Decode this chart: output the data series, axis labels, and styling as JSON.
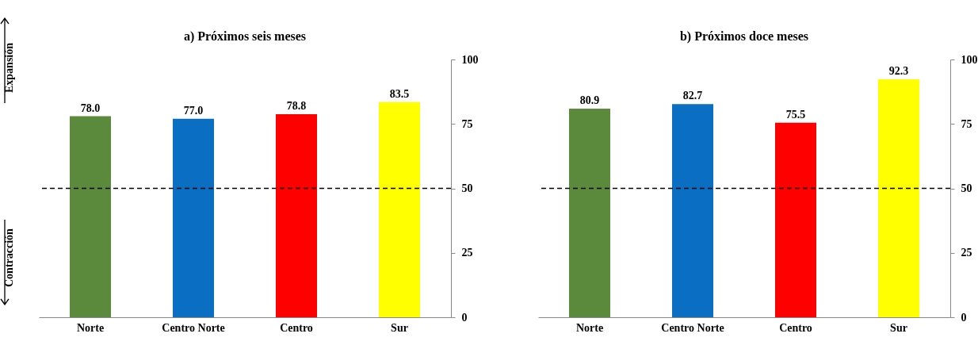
{
  "chart_data": [
    {
      "type": "bar",
      "title": "a) Próximos seis meses",
      "categories": [
        "Norte",
        "Centro Norte",
        "Centro",
        "Sur"
      ],
      "values": [
        78.0,
        77.0,
        78.8,
        83.5
      ],
      "value_labels": [
        "78.0",
        "77.0",
        "78.8",
        "83.5"
      ],
      "colors": [
        "#5b8a3c",
        "#0a6fc2",
        "#ff0000",
        "#ffff00"
      ],
      "ylim": [
        0,
        100
      ],
      "yticks": [
        0,
        25,
        50,
        75,
        100
      ],
      "ref_lines": [
        {
          "axis": "y",
          "value": 50,
          "line_style": "dashed",
          "color": "#000000"
        }
      ],
      "annotations": [
        "Expansión",
        "Contracción"
      ]
    },
    {
      "type": "bar",
      "title": "b) Próximos doce meses",
      "categories": [
        "Norte",
        "Centro Norte",
        "Centro",
        "Sur"
      ],
      "values": [
        80.9,
        82.7,
        75.5,
        92.3
      ],
      "value_labels": [
        "80.9",
        "82.7",
        "75.5",
        "92.3"
      ],
      "colors": [
        "#5b8a3c",
        "#0a6fc2",
        "#ff0000",
        "#ffff00"
      ],
      "ylim": [
        0,
        100
      ],
      "yticks": [
        0,
        25,
        50,
        75,
        100
      ],
      "ref_lines": [
        {
          "axis": "y",
          "value": 50,
          "line_style": "dashed",
          "color": "#000000"
        }
      ]
    }
  ]
}
